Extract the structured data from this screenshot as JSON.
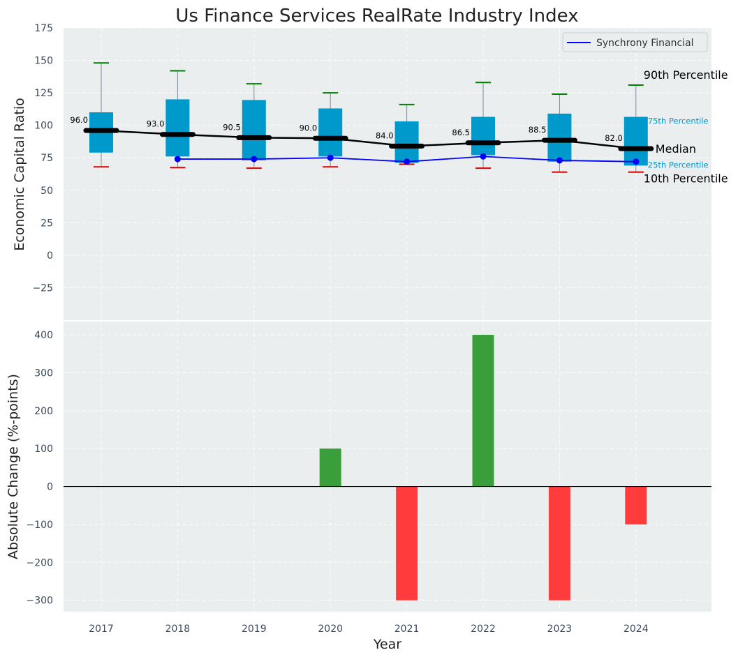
{
  "chart_data": [
    {
      "type": "box",
      "title": "Us Finance Services RealRate Industry Index",
      "ylabel": "Economic Capital Ratio",
      "ylim": [
        -50,
        175
      ],
      "yticks": [
        -25,
        0,
        25,
        50,
        75,
        100,
        125,
        150,
        175
      ],
      "categories": [
        "2017",
        "2018",
        "2019",
        "2020",
        "2021",
        "2022",
        "2023",
        "2024"
      ],
      "boxes": [
        {
          "year": "2017",
          "p10": 68,
          "p25": 79,
          "median": 96,
          "p75": 110,
          "p90": 148,
          "median_label": "96.0"
        },
        {
          "year": "2018",
          "p10": 67.5,
          "p25": 76,
          "median": 93,
          "p75": 120,
          "p90": 142,
          "median_label": "93.0"
        },
        {
          "year": "2019",
          "p10": 67,
          "p25": 73,
          "median": 90.5,
          "p75": 119.5,
          "p90": 132,
          "median_label": "90.5"
        },
        {
          "year": "2020",
          "p10": 68,
          "p25": 76,
          "median": 90,
          "p75": 113,
          "p90": 125,
          "median_label": "90.0"
        },
        {
          "year": "2021",
          "p10": 70,
          "p25": 71,
          "median": 84,
          "p75": 103,
          "p90": 116,
          "median_label": "84.0"
        },
        {
          "year": "2022",
          "p10": 67,
          "p25": 77,
          "median": 86.5,
          "p75": 106.5,
          "p90": 133,
          "median_label": "86.5"
        },
        {
          "year": "2023",
          "p10": 64,
          "p25": 72,
          "median": 88.5,
          "p75": 109,
          "p90": 124,
          "median_label": "88.5"
        },
        {
          "year": "2024",
          "p10": 64,
          "p25": 69,
          "median": 82,
          "p75": 106.5,
          "p90": 131,
          "median_label": "82.0"
        }
      ],
      "series": [
        {
          "name": "Synchrony Financial",
          "x": [
            "2018",
            "2019",
            "2020",
            "2021",
            "2022",
            "2023",
            "2024"
          ],
          "values": [
            74,
            74,
            75,
            72,
            76,
            73,
            72
          ]
        }
      ],
      "percentile_labels": {
        "p90": "90th Percentile",
        "p75": "75th Percentile",
        "median": "Median",
        "p25": "25th Percentile",
        "p10": "10th Percentile"
      },
      "legend": "top-right",
      "grid": true
    },
    {
      "type": "bar",
      "ylabel": "Absolute Change (%-points)",
      "xlabel": "Year",
      "ylim": [
        -330,
        435
      ],
      "yticks": [
        -300,
        -200,
        -100,
        0,
        100,
        200,
        300,
        400
      ],
      "categories": [
        "2017",
        "2018",
        "2019",
        "2020",
        "2021",
        "2022",
        "2023",
        "2024"
      ],
      "values": [
        0,
        0,
        0,
        100,
        -300,
        400,
        -300,
        -100
      ],
      "grid": true
    }
  ],
  "colors": {
    "panel_bg": "#eaeeef",
    "box": "#0099cc",
    "median": "#000000",
    "whisker_top": "#008000",
    "whisker_bottom": "#dd0000",
    "series": "#0000ff",
    "bar_pos": "#3a9e3a",
    "bar_neg": "#ff3b3b",
    "label_p75": "#0099cc"
  }
}
